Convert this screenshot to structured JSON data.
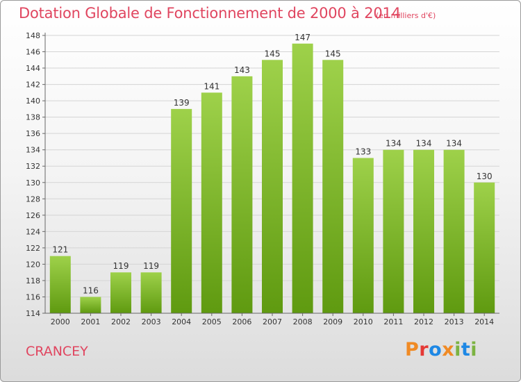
{
  "title": "Dotation Globale de Fonctionnement de 2000 à 2014",
  "unit": "(en milliers d'€)",
  "commune": "CRANCEY",
  "logo": "Proxiti",
  "colors": {
    "title": "#e0455f",
    "bar_top": "#9ed14a",
    "bar_bottom": "#5f9a10",
    "grid": "#d4d4d4",
    "logo": [
      "#f08a24",
      "#e53935",
      "#1e88e5",
      "#f08a24",
      "#7cb342",
      "#1e88e5",
      "#7cb342"
    ]
  },
  "chart_data": {
    "type": "bar",
    "title": "Dotation Globale de Fonctionnement de 2000 à 2014",
    "subtitle": "(en milliers d'€)",
    "categories": [
      "2000",
      "2001",
      "2002",
      "2003",
      "2004",
      "2005",
      "2006",
      "2007",
      "2008",
      "2009",
      "2010",
      "2011",
      "2012",
      "2013",
      "2014"
    ],
    "values": [
      121,
      116,
      119,
      119,
      139,
      141,
      143,
      145,
      147,
      145,
      133,
      134,
      134,
      134,
      130
    ],
    "ylim": [
      114,
      148
    ],
    "ytick_step": 2,
    "grid": true,
    "legend": "none"
  }
}
